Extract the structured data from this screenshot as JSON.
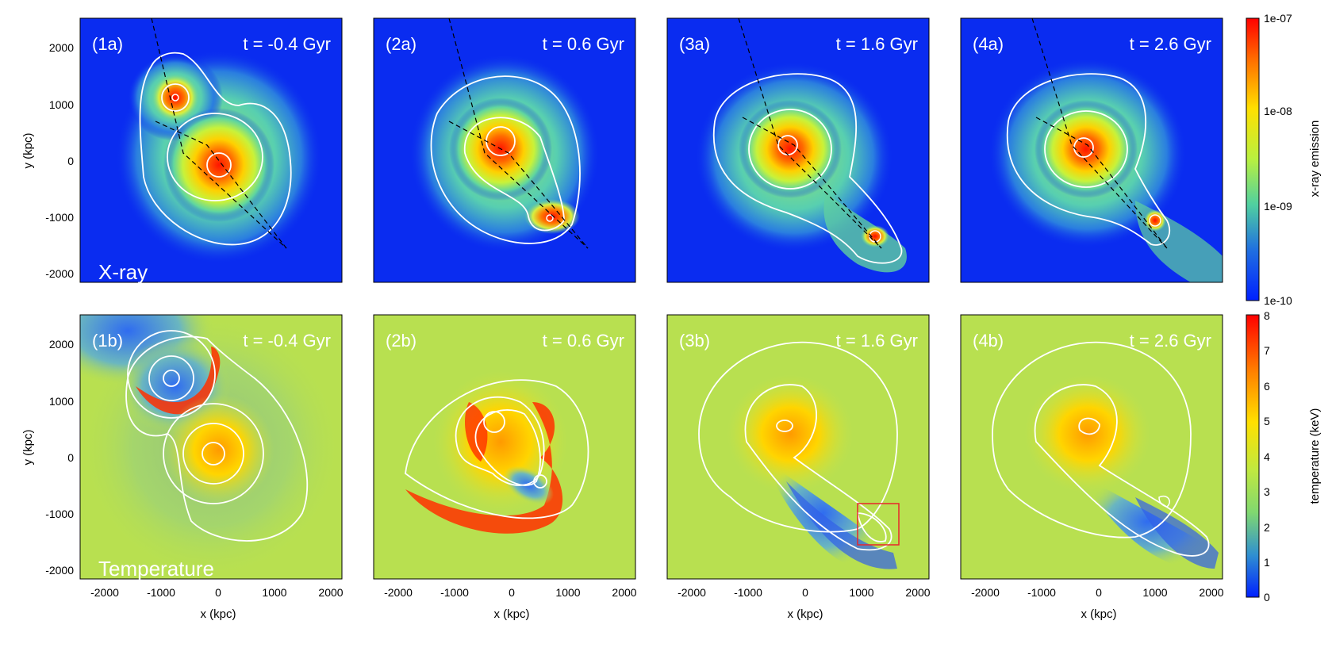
{
  "top_row": {
    "panels": [
      {
        "label": "(1a)",
        "time": "t = -0.4 Gyr"
      },
      {
        "label": "(2a)",
        "time": "t = 0.6 Gyr"
      },
      {
        "label": "(3a)",
        "time": "t = 1.6 Gyr"
      },
      {
        "label": "(4a)",
        "time": "t = 2.6 Gyr"
      }
    ],
    "row_label": "X-ray",
    "colorbar": {
      "title": "x-ray emission",
      "ticks": [
        "1e-07",
        "1e-08",
        "1e-09",
        "1e-10"
      ]
    }
  },
  "bottom_row": {
    "panels": [
      {
        "label": "(1b)",
        "time": "t = -0.4 Gyr"
      },
      {
        "label": "(2b)",
        "time": "t = 0.6 Gyr"
      },
      {
        "label": "(3b)",
        "time": "t = 1.6 Gyr"
      },
      {
        "label": "(4b)",
        "time": "t = 2.6 Gyr"
      }
    ],
    "row_label": "Temperature",
    "colorbar": {
      "title": "temperature (keV)",
      "ticks": [
        "8",
        "7",
        "6",
        "5",
        "4",
        "3",
        "2",
        "1",
        "0"
      ]
    }
  },
  "axes": {
    "x_title": "x (kpc)",
    "y_title": "y (kpc)",
    "x_ticks": [
      "-2000",
      "-1000",
      "0",
      "1000",
      "2000"
    ],
    "y_ticks": [
      "2000",
      "1000",
      "0",
      "-1000",
      "-2000"
    ]
  },
  "colors": {
    "field_blue": "#0a2cf0",
    "field_green": "#b9e34a",
    "hot_red": "#ff1a00",
    "contour": "#ffffff",
    "highlight_box": "#e8262b"
  }
}
